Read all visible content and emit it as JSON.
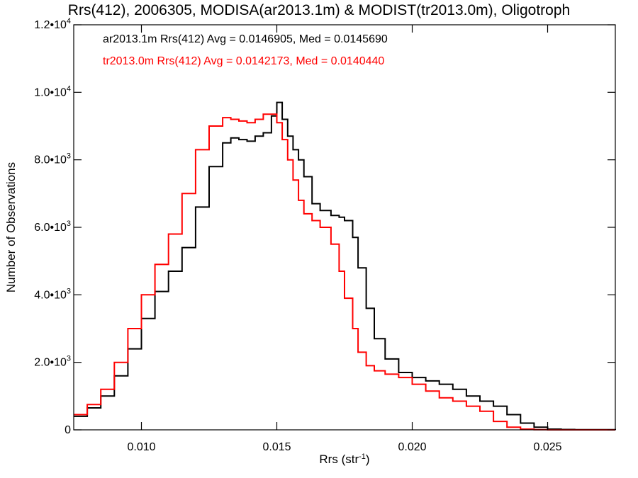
{
  "chart_data": {
    "type": "line",
    "step": true,
    "title": "Rrs(412), 2006305, MODISA(ar2013.1m) & MODIST(tr2013.0m), Oligotroph",
    "xlabel_main": "Rrs (str",
    "xlabel_sup": "-1",
    "xlabel_end": ")",
    "ylabel": "Number of Observations",
    "xlim": [
      0.0075,
      0.0275
    ],
    "ylim": [
      0,
      12000
    ],
    "x_ticks": [
      {
        "value": 0.01,
        "label": "0.010"
      },
      {
        "value": 0.015,
        "label": "0.015"
      },
      {
        "value": 0.02,
        "label": "0.020"
      },
      {
        "value": 0.025,
        "label": "0.025"
      }
    ],
    "y_ticks": [
      {
        "value": 0,
        "mant": "0",
        "exp": ""
      },
      {
        "value": 2000,
        "mant": "2.0•10",
        "exp": "3"
      },
      {
        "value": 4000,
        "mant": "4.0•10",
        "exp": "3"
      },
      {
        "value": 6000,
        "mant": "6.0•10",
        "exp": "3"
      },
      {
        "value": 8000,
        "mant": "8.0•10",
        "exp": "3"
      },
      {
        "value": 10000,
        "mant": "1.0•10",
        "exp": "4"
      },
      {
        "value": 12000,
        "mant": "1.2•10",
        "exp": "4"
      }
    ],
    "series": [
      {
        "name": "ar2013.1m",
        "legend": "ar2013.1m Rrs(412) Avg = 0.0146905, Med = 0.0145690",
        "color": "#000000",
        "x": [
          0.0075,
          0.008,
          0.0085,
          0.009,
          0.0095,
          0.01,
          0.0105,
          0.011,
          0.0115,
          0.012,
          0.0125,
          0.013,
          0.0133,
          0.0136,
          0.0139,
          0.0142,
          0.0145,
          0.0148,
          0.015,
          0.0152,
          0.0154,
          0.0156,
          0.0158,
          0.016,
          0.0163,
          0.0166,
          0.017,
          0.0173,
          0.0175,
          0.0178,
          0.018,
          0.0183,
          0.0186,
          0.019,
          0.0195,
          0.02,
          0.0205,
          0.021,
          0.0215,
          0.022,
          0.0225,
          0.023,
          0.0235,
          0.024,
          0.0245,
          0.025,
          0.0255,
          0.026,
          0.0275
        ],
        "y": [
          400,
          650,
          1000,
          1600,
          2400,
          3300,
          4100,
          4700,
          5400,
          6600,
          7800,
          8500,
          8650,
          8600,
          8550,
          8700,
          8800,
          9300,
          9700,
          9200,
          8700,
          8300,
          8000,
          7500,
          6700,
          6500,
          6350,
          6300,
          6200,
          5700,
          4800,
          3600,
          2700,
          2100,
          1700,
          1550,
          1450,
          1350,
          1200,
          1000,
          850,
          700,
          450,
          200,
          80,
          20,
          10,
          5,
          0
        ]
      },
      {
        "name": "tr2013.0m",
        "legend": "tr2013.0m Rrs(412) Avg = 0.0142173, Med = 0.0140440",
        "color": "#ff0000",
        "x": [
          0.0075,
          0.008,
          0.0085,
          0.009,
          0.0095,
          0.01,
          0.0105,
          0.011,
          0.0115,
          0.012,
          0.0125,
          0.013,
          0.0133,
          0.0136,
          0.0139,
          0.0142,
          0.0145,
          0.0148,
          0.015,
          0.0152,
          0.0154,
          0.0156,
          0.0158,
          0.016,
          0.0163,
          0.0166,
          0.017,
          0.0173,
          0.0175,
          0.0178,
          0.018,
          0.0183,
          0.0186,
          0.019,
          0.0195,
          0.02,
          0.0205,
          0.021,
          0.0215,
          0.022,
          0.0225,
          0.023,
          0.0235,
          0.024,
          0.0245,
          0.025,
          0.026,
          0.0275
        ],
        "y": [
          450,
          750,
          1200,
          2000,
          3000,
          4000,
          4900,
          5800,
          7000,
          8300,
          9000,
          9250,
          9200,
          9150,
          9100,
          9200,
          9350,
          9350,
          9100,
          8600,
          8000,
          7400,
          6800,
          6400,
          6200,
          6000,
          5500,
          4700,
          3900,
          3000,
          2300,
          1900,
          1750,
          1650,
          1550,
          1350,
          1150,
          950,
          850,
          700,
          550,
          250,
          80,
          20,
          5,
          0,
          0,
          0
        ]
      }
    ]
  }
}
